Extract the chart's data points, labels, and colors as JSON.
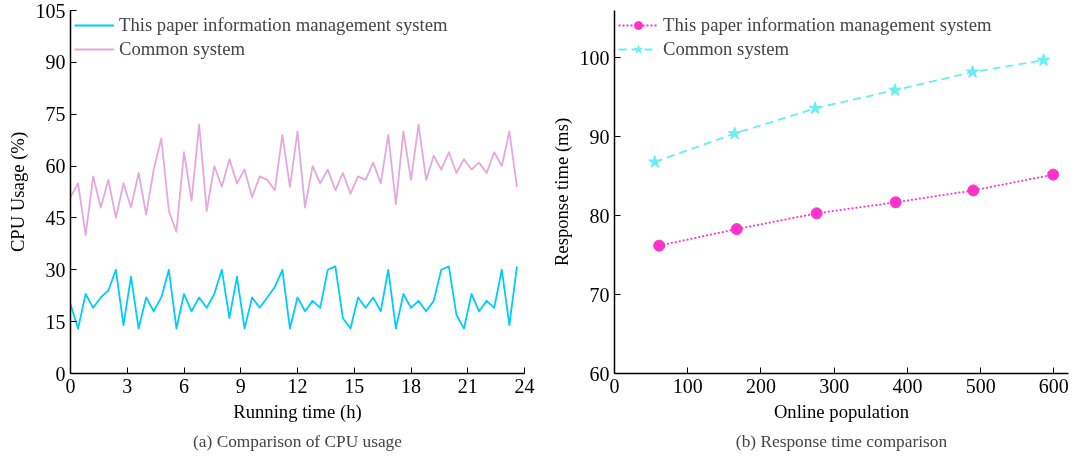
{
  "chart_data": [
    {
      "type": "line",
      "title": "(a) Comparison of CPU usage",
      "xlabel": "Running time (h)",
      "ylabel": "CPU Usage (%)",
      "xlim": [
        0,
        24
      ],
      "ylim": [
        0,
        105
      ],
      "xticks": [
        0,
        3,
        6,
        9,
        12,
        15,
        18,
        21,
        24
      ],
      "yticks": [
        0,
        15,
        30,
        45,
        60,
        75,
        90,
        105
      ],
      "grid": false,
      "legend": "top left",
      "marker": "none",
      "line_style": "solid",
      "series": [
        {
          "name": "This paper information management system",
          "color": "#00ccff",
          "x": [
            0,
            0.4,
            0.8,
            1.2,
            1.6,
            2.0,
            2.4,
            2.8,
            3.2,
            3.6,
            4.0,
            4.4,
            4.8,
            5.2,
            5.6,
            6.0,
            6.4,
            6.8,
            7.2,
            7.6,
            8.0,
            8.4,
            8.8,
            9.2,
            9.6,
            10.0,
            10.4,
            10.8,
            11.2,
            11.6,
            12.0,
            12.4,
            12.8,
            13.2,
            13.6,
            14.0,
            14.4,
            14.8,
            15.2,
            15.6,
            16.0,
            16.4,
            16.8,
            17.2,
            17.6,
            18.0,
            18.4,
            18.8,
            19.2,
            19.6,
            20.0,
            20.4,
            20.8,
            21.2,
            21.6,
            22.0,
            22.4,
            22.8,
            23.2,
            23.6
          ],
          "values": [
            20,
            13,
            23,
            19,
            22,
            24,
            30,
            14,
            28,
            13,
            22,
            18,
            22,
            30,
            13,
            23,
            18,
            22,
            19,
            23,
            30,
            16,
            28,
            13,
            22,
            19,
            22,
            25,
            30,
            13,
            22,
            18,
            21,
            19,
            30,
            31,
            16,
            13,
            22,
            19,
            22,
            18,
            30,
            13,
            23,
            19,
            21,
            18,
            21,
            30,
            31,
            17,
            13,
            23,
            18,
            21,
            19,
            30,
            14,
            31
          ]
        },
        {
          "name": "Common system",
          "color": "#e6a8dc",
          "x": [
            0,
            0.4,
            0.8,
            1.2,
            1.6,
            2.0,
            2.4,
            2.8,
            3.2,
            3.6,
            4.0,
            4.4,
            4.8,
            5.2,
            5.6,
            6.0,
            6.4,
            6.8,
            7.2,
            7.6,
            8.0,
            8.4,
            8.8,
            9.2,
            9.6,
            10.0,
            10.4,
            10.8,
            11.2,
            11.6,
            12.0,
            12.4,
            12.8,
            13.2,
            13.6,
            14.0,
            14.4,
            14.8,
            15.2,
            15.6,
            16.0,
            16.4,
            16.8,
            17.2,
            17.6,
            18.0,
            18.4,
            18.8,
            19.2,
            19.6,
            20.0,
            20.4,
            20.8,
            21.2,
            21.6,
            22.0,
            22.4,
            22.8,
            23.2,
            23.6
          ],
          "values": [
            51,
            55,
            40,
            57,
            48,
            56,
            45,
            55,
            48,
            58,
            46,
            59,
            68,
            47,
            41,
            64,
            50,
            72,
            47,
            60,
            54,
            62,
            55,
            59,
            51,
            57,
            56,
            53,
            69,
            54,
            70,
            48,
            60,
            55,
            59,
            53,
            58,
            52,
            57,
            56,
            61,
            55,
            69,
            49,
            70,
            56,
            72,
            56,
            63,
            59,
            64,
            58,
            62,
            59,
            61,
            58,
            64,
            60,
            70,
            54
          ]
        }
      ]
    },
    {
      "type": "line",
      "title": "(b) Response time comparison",
      "xlabel": "Online population",
      "ylabel": "Response time (ms)",
      "xlim": [
        0,
        620
      ],
      "ylim": [
        60,
        106
      ],
      "xticks": [
        0,
        100,
        200,
        300,
        400,
        500,
        600
      ],
      "yticks": [
        60,
        70,
        80,
        90,
        100
      ],
      "grid": false,
      "legend": "top left",
      "series": [
        {
          "name": "This paper information management system",
          "color": "#ff33cc",
          "marker": "circle",
          "line_style": "dotted",
          "x": [
            61,
            167,
            276,
            384,
            490,
            599
          ],
          "values": [
            76.2,
            78.3,
            80.3,
            81.7,
            83.2,
            85.2
          ]
        },
        {
          "name": "Common system",
          "color": "#66f0f5",
          "marker": "star",
          "line_style": "dashed",
          "x": [
            55,
            164,
            274,
            383,
            489,
            586
          ],
          "values": [
            86.8,
            90.4,
            93.6,
            95.9,
            98.2,
            99.7
          ]
        }
      ]
    }
  ]
}
